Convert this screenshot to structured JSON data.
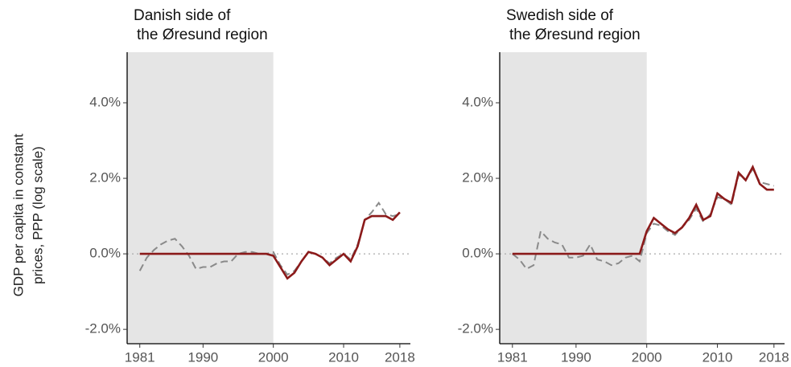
{
  "chart_data": [
    {
      "type": "line",
      "title": [
        "Danish side of",
        "the Øresund region"
      ],
      "ylabel": [
        "GDP per capita in constant",
        "prices, PPP (log scale)"
      ],
      "x": [
        1981,
        1982,
        1983,
        1984,
        1985,
        1986,
        1987,
        1988,
        1989,
        1990,
        1991,
        1992,
        1993,
        1994,
        1995,
        1996,
        1997,
        1998,
        1999,
        2000,
        2001,
        2002,
        2003,
        2004,
        2005,
        2006,
        2007,
        2008,
        2009,
        2010,
        2011,
        2012,
        2013,
        2014,
        2015,
        2016,
        2017,
        2018
      ],
      "series": [
        {
          "color": "#8a8a8a",
          "dash": true,
          "values": [
            -0.45,
            -0.1,
            0.1,
            0.25,
            0.35,
            0.4,
            0.2,
            -0.05,
            -0.4,
            -0.35,
            -0.35,
            -0.25,
            -0.2,
            -0.2,
            0.0,
            0.05,
            0.05,
            0.0,
            0.0,
            0.05,
            -0.3,
            -0.55,
            -0.45,
            -0.2,
            0.05,
            0.0,
            -0.1,
            -0.25,
            -0.1,
            0.0,
            -0.15,
            0.25,
            0.9,
            1.1,
            1.35,
            1.05,
            1.0,
            1.05
          ]
        },
        {
          "color": "#8b1a1a",
          "dash": false,
          "values": [
            0,
            0,
            0,
            0,
            0,
            0,
            0,
            0,
            0,
            0,
            0,
            0,
            0,
            0,
            0,
            0,
            0,
            0,
            0,
            -0.05,
            -0.35,
            -0.65,
            -0.5,
            -0.2,
            0.05,
            0.0,
            -0.1,
            -0.3,
            -0.15,
            0.0,
            -0.2,
            0.2,
            0.9,
            1.0,
            1.0,
            1.0,
            0.9,
            1.1
          ]
        }
      ],
      "shade_end": 2000,
      "reference_line": 0,
      "xlim": [
        1979.2,
        2019.5
      ],
      "xticks": [
        1981,
        1990,
        2000,
        2010,
        2018
      ],
      "ylim": [
        -2.38,
        5.34
      ],
      "yticks": [
        {
          "value": -2,
          "label": "-2.0%"
        },
        {
          "value": 0,
          "label": "0.0%"
        },
        {
          "value": 2,
          "label": "2.0%"
        },
        {
          "value": 4,
          "label": "4.0%"
        }
      ]
    },
    {
      "type": "line",
      "title": [
        "Swedish side of",
        "the Øresund region"
      ],
      "x": [
        1981,
        1982,
        1983,
        1984,
        1985,
        1986,
        1987,
        1988,
        1989,
        1990,
        1991,
        1992,
        1993,
        1994,
        1995,
        1996,
        1997,
        1998,
        1999,
        2000,
        2001,
        2002,
        2003,
        2004,
        2005,
        2006,
        2007,
        2008,
        2009,
        2010,
        2011,
        2012,
        2013,
        2014,
        2015,
        2016,
        2017,
        2018
      ],
      "series": [
        {
          "color": "#8a8a8a",
          "dash": true,
          "values": [
            0.0,
            -0.15,
            -0.4,
            -0.3,
            0.6,
            0.4,
            0.3,
            0.25,
            -0.1,
            -0.1,
            -0.05,
            0.25,
            -0.15,
            -0.2,
            -0.3,
            -0.25,
            -0.1,
            -0.05,
            -0.2,
            0.55,
            0.8,
            0.75,
            0.6,
            0.5,
            0.7,
            0.9,
            1.2,
            0.85,
            1.05,
            1.5,
            1.45,
            1.3,
            2.1,
            1.95,
            2.25,
            1.9,
            1.85,
            1.8
          ]
        },
        {
          "color": "#8b1a1a",
          "dash": false,
          "values": [
            0,
            0,
            0,
            0,
            0,
            0,
            0,
            0,
            0,
            0,
            0,
            0,
            0,
            0,
            0,
            0,
            0,
            0,
            0,
            0.6,
            0.95,
            0.8,
            0.65,
            0.55,
            0.7,
            0.95,
            1.3,
            0.9,
            1.0,
            1.6,
            1.45,
            1.35,
            2.15,
            1.95,
            2.3,
            1.85,
            1.7,
            1.7
          ]
        }
      ],
      "shade_end": 2000,
      "reference_line": 0,
      "xlim": [
        1979.2,
        2019.5
      ],
      "xticks": [
        1981,
        1990,
        2000,
        2010,
        2018
      ],
      "ylim": [
        -2.38,
        5.34
      ],
      "yticks": [
        {
          "value": -2,
          "label": "-2.0%"
        },
        {
          "value": 0,
          "label": "0.0%"
        },
        {
          "value": 2,
          "label": "2.0%"
        },
        {
          "value": 4,
          "label": "4.0%"
        }
      ]
    }
  ]
}
